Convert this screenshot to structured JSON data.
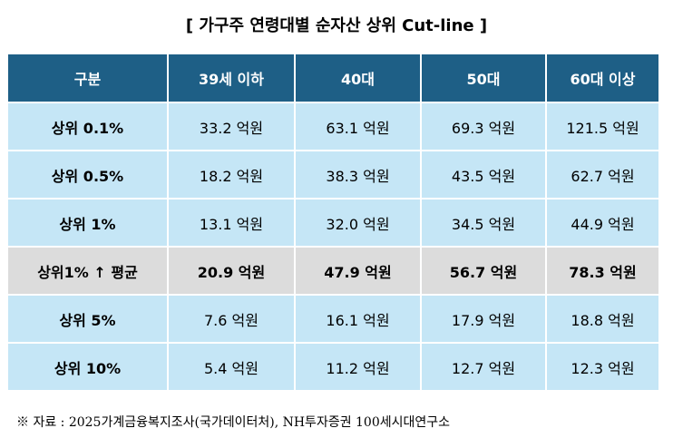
{
  "title": "[ 가구주 연령대별  순자산 상위 Cut-line ]",
  "table": {
    "headers": [
      "구분",
      "39세 이하",
      "40대",
      "50대",
      "60대 이상"
    ],
    "rows": [
      {
        "label": "상위 0.1%",
        "values": [
          "33.2 억원",
          "63.1 억원",
          "69.3 억원",
          "121.5 억원"
        ]
      },
      {
        "label": "상위 0.5%",
        "values": [
          "18.2 억원",
          "38.3 억원",
          "43.5 억원",
          "62.7 억원"
        ]
      },
      {
        "label": "상위 1%",
        "values": [
          "13.1 억원",
          "32.0 억원",
          "34.5 억원",
          "44.9 억원"
        ]
      },
      {
        "label": "상위1% ↑ 평균",
        "values": [
          "20.9 억원",
          "47.9 억원",
          "56.7 억원",
          "78.3 억원"
        ]
      },
      {
        "label": "상위 5%",
        "values": [
          "7.6 억원",
          "16.1 억원",
          "17.9 억원",
          "18.8 억원"
        ]
      },
      {
        "label": "상위 10%",
        "values": [
          "5.4 억원",
          "11.2 억원",
          "12.7 억원",
          "12.3 억원"
        ]
      }
    ]
  },
  "source": "※ 자료 : 2025가계금융복지조사(국가데이터처), NH투자증권 100세시대연구소"
}
